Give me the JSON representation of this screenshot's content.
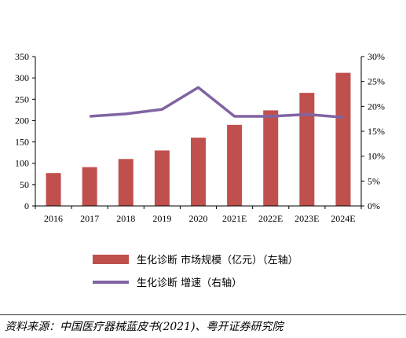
{
  "chart_data": {
    "type": "bar+line",
    "categories": [
      "2016",
      "2017",
      "2018",
      "2019",
      "2020",
      "2021E",
      "2022E",
      "2023E",
      "2024E"
    ],
    "series": [
      {
        "name": "生化诊断 市场规模（亿元）（左轴）",
        "type": "bar",
        "axis": "left",
        "color": "#c0504d",
        "values": [
          77,
          91,
          110,
          130,
          160,
          190,
          224,
          265,
          312
        ]
      },
      {
        "name": "生化诊断 增速（右轴）",
        "type": "line",
        "axis": "right",
        "color": "#8064a2",
        "values": [
          null,
          0.18,
          0.185,
          0.194,
          0.238,
          0.18,
          0.18,
          0.184,
          0.178
        ]
      }
    ],
    "y_left": {
      "ticks": [
        "0",
        "50",
        "100",
        "150",
        "200",
        "250",
        "300",
        "350"
      ],
      "range": [
        0,
        350
      ]
    },
    "y_right": {
      "ticks": [
        "0%",
        "5%",
        "10%",
        "15%",
        "20%",
        "25%",
        "30%"
      ],
      "range": [
        0,
        0.3
      ]
    },
    "grid": false,
    "legend_position": "bottom"
  },
  "source_text": "资料来源：中国医疗器械蓝皮书(2021)、粤开证券研究院"
}
